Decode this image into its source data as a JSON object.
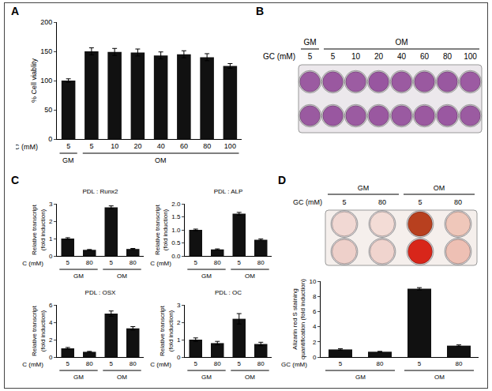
{
  "panel_labels": [
    "A",
    "B",
    "C",
    "D"
  ],
  "plates": [
    {
      "x_label": "GC (mM)",
      "groups": [
        "GM",
        "OM",
        "OM",
        "OM",
        "OM",
        "OM",
        "OM",
        "OM"
      ],
      "columns": [
        "5",
        "5",
        "10",
        "20",
        "40",
        "60",
        "80",
        "100"
      ],
      "wells": [
        [
          "#9b5ba1",
          "#9a58a0",
          "#9c5ca2",
          "#9856a0",
          "#9b5aa1",
          "#9a59a0",
          "#9958a0",
          "#9c5ba2"
        ],
        [
          "#9a5aa0",
          "#9957a0",
          "#9b5ba1",
          "#9a58a0",
          "#9a5aa1",
          "#9b59a0",
          "#9a58a1",
          "#9b5ba1"
        ]
      ]
    },
    {
      "x_label": "GC (mM)",
      "groups": [
        "GM",
        "GM",
        "OM",
        "OM"
      ],
      "columns": [
        "5",
        "80",
        "5",
        "80"
      ],
      "wells": [
        [
          "#f1d8d3",
          "#f3dcd6",
          "#b8401f",
          "#efc7ba"
        ],
        [
          "#eed0ca",
          "#f0d4ce",
          "#d8261a",
          "#eec0b4"
        ]
      ]
    }
  ],
  "chart_data": [
    {
      "type": "bar",
      "y_label": "% Cell viablity",
      "x_label": "GC (mM)",
      "categories": [
        "5",
        "5",
        "10",
        "20",
        "40",
        "60",
        "80",
        "100"
      ],
      "groups": [
        "GM",
        "OM",
        "OM",
        "OM",
        "OM",
        "OM",
        "OM",
        "OM"
      ],
      "values": [
        100,
        150,
        149,
        148,
        143,
        145,
        140,
        125
      ],
      "errors": [
        3,
        6,
        6,
        6,
        6,
        6,
        6,
        4
      ],
      "color": "#111111",
      "ylim": [
        0,
        200
      ],
      "yticks": [
        0,
        50,
        100,
        150,
        200
      ]
    },
    {
      "type": "bar",
      "title": "PDL : Runx2",
      "y_label": [
        "Relative transcript",
        "(fold induction)"
      ],
      "x_label": "GC (mM)",
      "categories": [
        "5",
        "80",
        "5",
        "80"
      ],
      "groups": [
        "GM",
        "GM",
        "OM",
        "OM"
      ],
      "values": [
        1.0,
        0.35,
        2.8,
        0.4
      ],
      "errors": [
        0.05,
        0.02,
        0.08,
        0.03
      ],
      "color": "#111111",
      "ylim": [
        0,
        3
      ],
      "yticks": [
        0,
        1,
        2,
        3
      ]
    },
    {
      "type": "bar",
      "title": "PDL : ALP",
      "y_label": [
        "Relative transcript",
        "(fold induction)"
      ],
      "x_label": "GC (mM)",
      "categories": [
        "5",
        "80",
        "5",
        "80"
      ],
      "groups": [
        "GM",
        "GM",
        "OM",
        "OM"
      ],
      "values": [
        1.0,
        0.25,
        1.62,
        0.62
      ],
      "errors": [
        0.03,
        0.02,
        0.05,
        0.03
      ],
      "color": "#111111",
      "ylim": [
        0,
        2
      ],
      "yticks": [
        {
          "value": 0,
          "label": "0.0"
        },
        {
          "value": 0.5,
          "label": "0.5"
        },
        {
          "value": 1,
          "label": "1.0"
        },
        {
          "value": 1.5,
          "label": "1.5"
        },
        {
          "value": 2,
          "label": "2.0"
        }
      ]
    },
    {
      "type": "bar",
      "title": "PDL : OSX",
      "y_label": [
        "Relative transcript",
        "(fold induction)"
      ],
      "x_label": "GC (mM)",
      "categories": [
        "5",
        "80",
        "5",
        "80"
      ],
      "groups": [
        "GM",
        "GM",
        "OM",
        "OM"
      ],
      "values": [
        1.0,
        0.6,
        5.0,
        3.3
      ],
      "errors": [
        0.1,
        0.05,
        0.3,
        0.2
      ],
      "color": "#111111",
      "ylim": [
        0,
        6
      ],
      "yticks": [
        0,
        2,
        4,
        6
      ]
    },
    {
      "type": "bar",
      "title": "PDL : OC",
      "y_label": [
        "Relative transcript",
        "(fold induction)"
      ],
      "x_label": "GC (mM)",
      "categories": [
        "5",
        "80",
        "5",
        "80"
      ],
      "groups": [
        "GM",
        "GM",
        "OM",
        "OM"
      ],
      "values": [
        1.0,
        0.8,
        2.2,
        0.75
      ],
      "errors": [
        0.1,
        0.1,
        0.3,
        0.1
      ],
      "color": "#111111",
      "ylim": [
        0,
        3
      ],
      "yticks": [
        0,
        1,
        2,
        3
      ]
    },
    {
      "type": "bar",
      "y_label": [
        "Alizarin red S staining",
        "quantification (fold induction)"
      ],
      "x_label": "GC (mM)",
      "categories": [
        "5",
        "80",
        "5",
        "80"
      ],
      "groups": [
        "GM",
        "GM",
        "OM",
        "OM"
      ],
      "values": [
        1.0,
        0.7,
        9.0,
        1.5
      ],
      "errors": [
        0.1,
        0.05,
        0.15,
        0.1
      ],
      "color": "#111111",
      "ylim": [
        0,
        10
      ],
      "yticks": [
        0,
        2,
        4,
        6,
        8,
        10
      ]
    }
  ]
}
